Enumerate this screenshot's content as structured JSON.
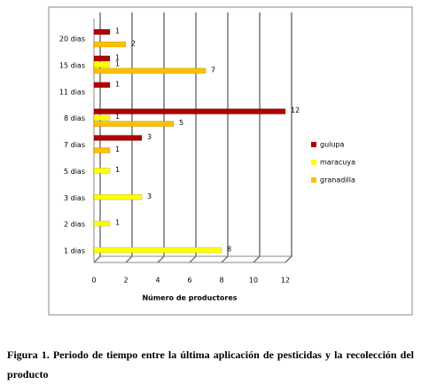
{
  "chart_data": {
    "type": "hbar",
    "categories": [
      "1 dias",
      "2 dias",
      "3 dias",
      "5 dias",
      "7 dias",
      "8 dias",
      "11 dias",
      "15 dias",
      "20 dias"
    ],
    "series": [
      {
        "name": "gulupa",
        "color": "#b00000",
        "values": [
          null,
          null,
          null,
          null,
          3,
          12,
          1,
          1,
          1
        ]
      },
      {
        "name": "maracuya",
        "color": "#ffff00",
        "values": [
          8,
          1,
          3,
          1,
          null,
          1,
          null,
          1,
          null
        ]
      },
      {
        "name": "granadilla",
        "color": "#ffc000",
        "values": [
          null,
          null,
          null,
          null,
          1,
          5,
          null,
          7,
          2
        ]
      }
    ],
    "xlabel": "Número de productores",
    "xlim": [
      0,
      12
    ],
    "xticks": [
      0,
      2,
      4,
      6,
      8,
      10,
      12
    ],
    "grid": true,
    "legend": "right",
    "caption": "Figura 1. Periodo de tiempo entre la última aplicación de pesticidas y la recolección del producto"
  }
}
